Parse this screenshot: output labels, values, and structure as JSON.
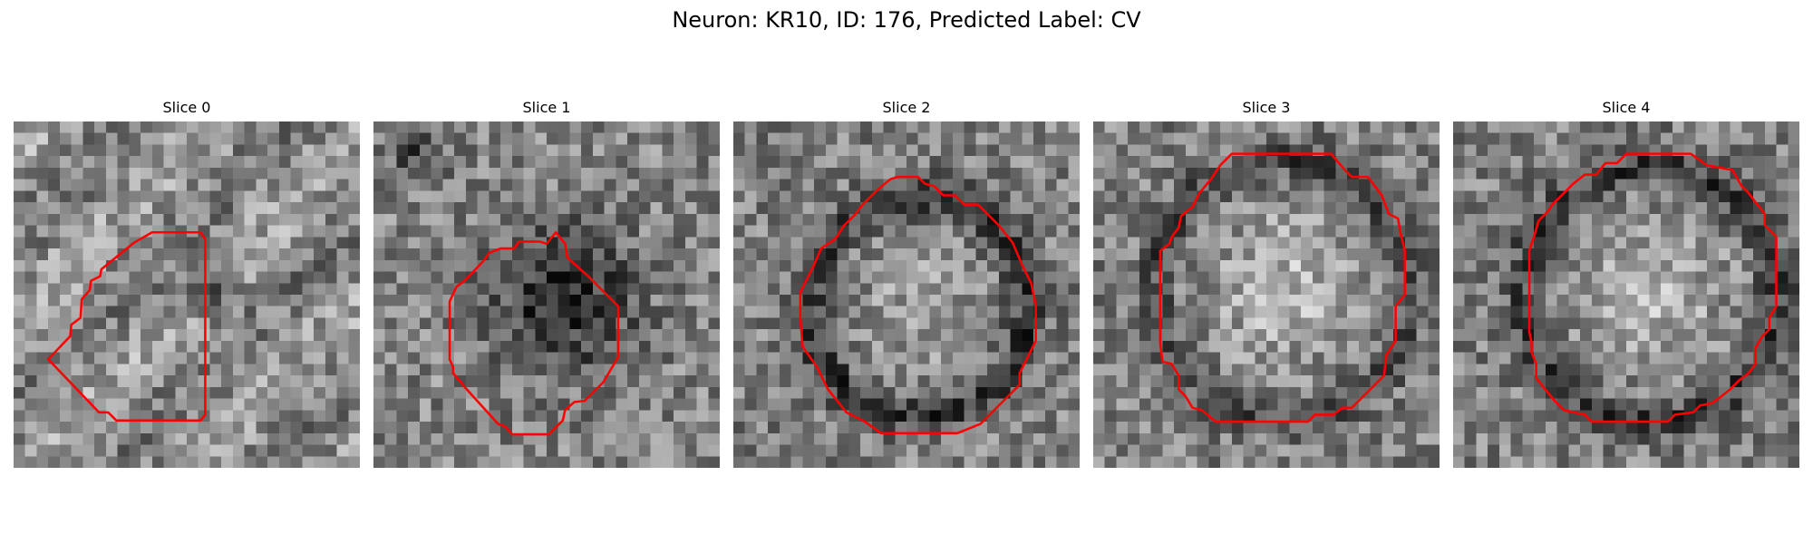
{
  "figure": {
    "title": "Neuron: KR10, ID: 176, Predicted Label: CV",
    "outline_color": "#ff0000",
    "image_colormap": "grayscale",
    "image_grid_size": 30
  },
  "slices": [
    {
      "label": "Slice 0",
      "seed": 11,
      "texture": "faint diagonal structure, dark spot near center-right"
    },
    {
      "label": "Slice 1",
      "seed": 23,
      "texture": "large dark region around center"
    },
    {
      "label": "Slice 2",
      "seed": 37,
      "texture": "dark ring around bright granular center"
    },
    {
      "label": "Slice 3",
      "seed": 41,
      "texture": "bright granular disk with dark rim"
    },
    {
      "label": "Slice 4",
      "seed": 59,
      "texture": "bright granular disk with dark outer ring"
    }
  ]
}
